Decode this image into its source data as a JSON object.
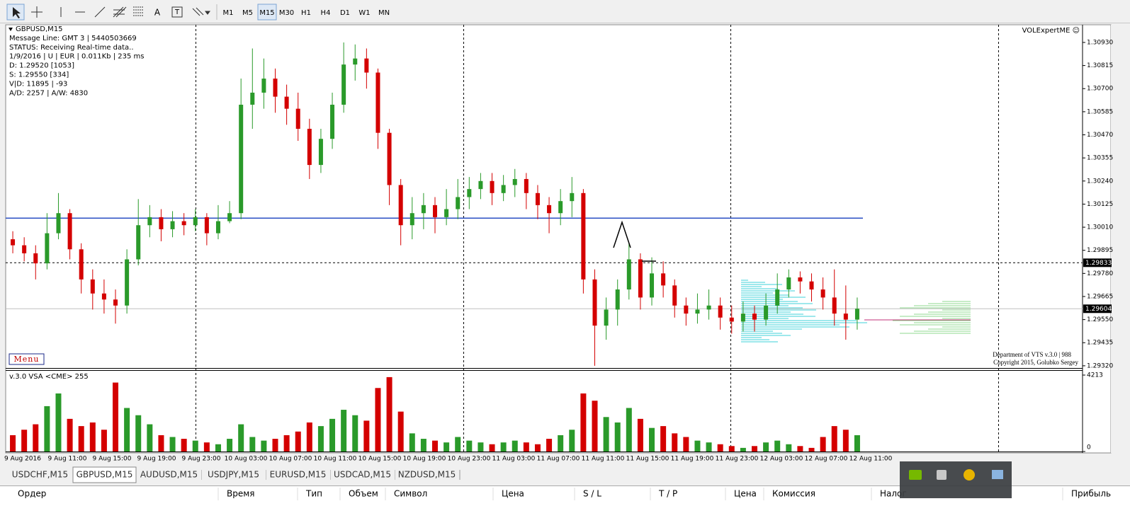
{
  "toolbar": {
    "timeframes": [
      "M1",
      "M5",
      "M15",
      "M30",
      "H1",
      "H4",
      "D1",
      "W1",
      "MN"
    ],
    "active": "M15",
    "tools": [
      "A",
      "T"
    ]
  },
  "info": [
    "GBPUSD,M15",
    "Message Line: GMT 3 | 5440503669",
    "STATUS:  Receiving Real-time data..",
    "1/9/2016 | U | EUR | 0.011Kb | 235 ms",
    "D: 1.29520  [1053]",
    "S: 1.29550  [334]",
    "V|D: 11895 | -93",
    "A/D: 2257 | A/W: 4830"
  ],
  "indicator_name": "VOLExpertME ☺",
  "menu": "Menu",
  "credits": [
    "Department of VTS  v.3.0 | 988",
    "Copyright 2015, Golubko Sergey"
  ],
  "chart_data": {
    "type": "candlestick",
    "colors": {
      "up": "#2a9a2a",
      "down": "#d40000"
    },
    "ylim": [
      1.29309,
      1.31018
    ],
    "yticks": [
      {
        "value": 1.3093,
        "label": "1.30930"
      },
      {
        "value": 1.30815,
        "label": "1.30815"
      },
      {
        "value": 1.307,
        "label": "1.30700"
      },
      {
        "value": 1.30585,
        "label": "1.30585"
      },
      {
        "value": 1.3047,
        "label": "1.30470"
      },
      {
        "value": 1.30355,
        "label": "1.30355"
      },
      {
        "value": 1.3024,
        "label": "1.30240"
      },
      {
        "value": 1.30125,
        "label": "1.30125"
      },
      {
        "value": 1.3001,
        "label": "1.30010"
      },
      {
        "value": 1.29895,
        "label": "1.29895"
      },
      {
        "value": 1.2978,
        "label": "1.29780"
      },
      {
        "value": 1.29665,
        "label": "1.29665"
      },
      {
        "value": 1.2955,
        "label": "1.29550"
      },
      {
        "value": 1.29435,
        "label": "1.29435"
      },
      {
        "value": 1.2932,
        "label": "1.29320"
      }
    ],
    "price_markers": [
      {
        "value": 1.29833,
        "label": "1.29833",
        "style": "dashed"
      },
      {
        "value": 1.29604,
        "label": "1.29604",
        "style": "solid"
      }
    ],
    "level_line": {
      "value": 1.30055,
      "color": "#2a4fc4"
    },
    "x_labels": [
      "9 Aug 2016",
      "9 Aug 11:00",
      "9 Aug 15:00",
      "9 Aug 19:00",
      "9 Aug 23:00",
      "10 Aug 03:00",
      "10 Aug 07:00",
      "10 Aug 11:00",
      "10 Aug 15:00",
      "10 Aug 19:00",
      "10 Aug 23:00",
      "11 Aug 03:00",
      "11 Aug 07:00",
      "11 Aug 11:00",
      "11 Aug 15:00",
      "11 Aug 19:00",
      "11 Aug 23:00",
      "12 Aug 03:00",
      "12 Aug 07:00",
      "12 Aug 11:00"
    ],
    "open": [
      1.2995,
      1.2992,
      1.2988,
      1.2983,
      1.2998,
      1.3008,
      1.299,
      1.2975,
      1.2968,
      1.2965,
      1.2962,
      1.2985,
      1.3002,
      1.3006,
      1.3,
      1.3004,
      1.3002,
      1.3006,
      1.2998,
      1.3004,
      1.3008,
      1.3062,
      1.3068,
      1.3075,
      1.3066,
      1.306,
      1.305,
      1.3032,
      1.3045,
      1.3062,
      1.3082,
      1.3085,
      1.3078,
      1.3048,
      1.3022,
      1.3002,
      1.3008,
      1.3012,
      1.3006,
      1.301,
      1.3016,
      1.302,
      1.3024,
      1.3018,
      1.3022,
      1.3025,
      1.3018,
      1.3012,
      1.3008,
      1.3014,
      1.3018,
      1.2975,
      1.2952,
      1.296,
      1.297,
      1.2985,
      1.2966,
      1.2978,
      1.2972,
      1.2962,
      1.2958,
      1.296,
      1.2962,
      1.2956,
      1.2954,
      1.2958,
      1.2955,
      1.2962,
      1.297,
      1.2976,
      1.2974,
      1.297,
      1.2966,
      1.2958,
      1.2955
    ],
    "high": [
      1.2999,
      1.2996,
      1.2992,
      1.3008,
      1.3018,
      1.301,
      1.2993,
      1.298,
      1.2975,
      1.297,
      1.299,
      1.3015,
      1.3012,
      1.301,
      1.3009,
      1.3008,
      1.301,
      1.3008,
      1.3012,
      1.3014,
      1.3075,
      1.309,
      1.3085,
      1.308,
      1.3072,
      1.3068,
      1.3055,
      1.305,
      1.3068,
      1.3093,
      1.3092,
      1.309,
      1.308,
      1.305,
      1.3025,
      1.3016,
      1.3018,
      1.3016,
      1.302,
      1.3025,
      1.3026,
      1.3028,
      1.3028,
      1.3027,
      1.303,
      1.3028,
      1.3022,
      1.3016,
      1.302,
      1.3026,
      1.302,
      1.298,
      1.2966,
      1.2975,
      1.2993,
      1.2988,
      1.2986,
      1.2984,
      1.2975,
      1.2966,
      1.2968,
      1.297,
      1.2966,
      1.2962,
      1.2964,
      1.2962,
      1.2968,
      1.2978,
      1.298,
      1.2979,
      1.2978,
      1.2976,
      1.298,
      1.2972,
      1.2966
    ],
    "low": [
      1.2988,
      1.2984,
      1.2975,
      1.298,
      1.2995,
      1.2985,
      1.2968,
      1.296,
      1.2958,
      1.2953,
      1.2958,
      1.2982,
      1.2996,
      1.2994,
      1.2996,
      1.2997,
      1.2999,
      1.2992,
      1.2995,
      1.3003,
      1.3005,
      1.305,
      1.306,
      1.3058,
      1.3052,
      1.3044,
      1.3025,
      1.3028,
      1.304,
      1.3058,
      1.3074,
      1.307,
      1.304,
      1.3012,
      1.2992,
      1.2995,
      1.3,
      1.2998,
      1.3002,
      1.3005,
      1.301,
      1.3015,
      1.3012,
      1.3014,
      1.3016,
      1.301,
      1.3005,
      1.2998,
      1.3002,
      1.3006,
      1.2968,
      1.2932,
      1.2945,
      1.2952,
      1.2965,
      1.296,
      1.2962,
      1.2966,
      1.2956,
      1.2952,
      1.2953,
      1.2955,
      1.295,
      1.2948,
      1.2949,
      1.2949,
      1.2952,
      1.2958,
      1.2966,
      1.2968,
      1.2964,
      1.296,
      1.2952,
      1.2945,
      1.295
    ],
    "close": [
      1.2992,
      1.2988,
      1.2983,
      1.2998,
      1.3008,
      1.299,
      1.2975,
      1.2968,
      1.2965,
      1.2962,
      1.2985,
      1.3002,
      1.3006,
      1.3,
      1.3004,
      1.3002,
      1.3006,
      1.2998,
      1.3004,
      1.3008,
      1.3062,
      1.3068,
      1.3075,
      1.3066,
      1.306,
      1.305,
      1.3032,
      1.3045,
      1.3062,
      1.3082,
      1.3085,
      1.3078,
      1.3048,
      1.3022,
      1.3002,
      1.3008,
      1.3012,
      1.3006,
      1.301,
      1.3016,
      1.302,
      1.3024,
      1.3018,
      1.3022,
      1.3025,
      1.3018,
      1.3012,
      1.3008,
      1.3014,
      1.3018,
      1.2975,
      1.2952,
      1.296,
      1.297,
      1.2985,
      1.2966,
      1.2978,
      1.2972,
      1.2962,
      1.2958,
      1.296,
      1.2962,
      1.2956,
      1.2954,
      1.2958,
      1.2955,
      1.2962,
      1.297,
      1.2976,
      1.2974,
      1.297,
      1.2966,
      1.2958,
      1.2955,
      1.29604
    ],
    "volume": {
      "title": "v.3.0 VSA <CME> 255",
      "ylim": [
        0,
        4213
      ],
      "yticks": [
        0,
        4213
      ],
      "values": [
        900,
        1200,
        1500,
        2500,
        3200,
        1800,
        1400,
        1600,
        1200,
        3800,
        2400,
        2000,
        1500,
        900,
        800,
        700,
        600,
        500,
        400,
        700,
        1500,
        800,
        600,
        700,
        900,
        1100,
        1600,
        1400,
        1800,
        2300,
        2000,
        1700,
        3500,
        4100,
        2200,
        1000,
        700,
        600,
        500,
        800,
        600,
        500,
        400,
        500,
        600,
        500,
        400,
        700,
        900,
        1200,
        3200,
        2800,
        1900,
        1600,
        2400,
        1800,
        1300,
        1400,
        1000,
        800,
        600,
        500,
        400,
        300,
        200,
        300,
        500,
        600,
        400,
        300,
        200,
        800,
        1400,
        1200,
        900
      ]
    }
  },
  "tabs": [
    "USDCHF,M15",
    "GBPUSD,M15",
    "AUDUSD,M15",
    "USDJPY,M15",
    "EURUSD,M15",
    "USDCAD,M15",
    "NZDUSD,M15"
  ],
  "active_tab": 1,
  "terminal_columns": [
    "Ордер",
    "Время",
    "Тип",
    "Объем",
    "Символ",
    "Цена",
    "S / L",
    "T / P",
    "Цена",
    "Комиссия",
    "Налог",
    "Прибыль"
  ]
}
